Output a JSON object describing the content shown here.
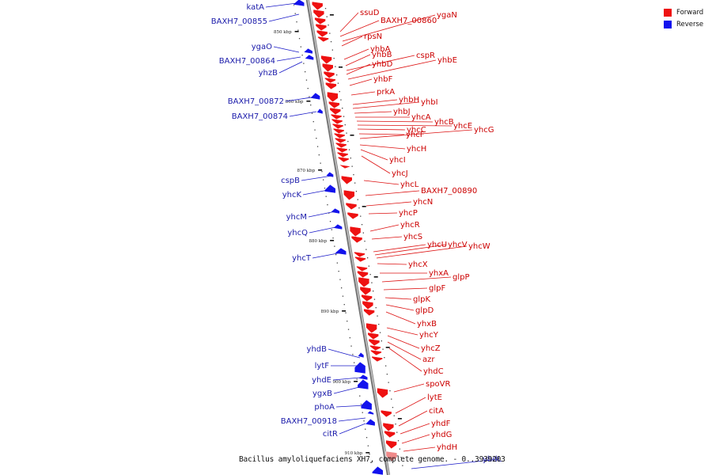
{
  "caption": "Bacillus amyloliquefaciens XH7, complete genome. - 0..3939203",
  "colors": {
    "forward": "#ee1111",
    "reverse": "#1212ee",
    "backbone": "#888888"
  },
  "legend": [
    {
      "label": "Forward",
      "color": "#ee1111"
    },
    {
      "label": "Reverse",
      "color": "#1212ee"
    }
  ],
  "ticks": [
    "850 kbp",
    "860 kbp",
    "870 kbp",
    "880 kbp",
    "890 kbp",
    "900 kbp",
    "910 kbp"
  ],
  "forward_genes": [
    "ssuD",
    "BAXH7_00860",
    "ygaN",
    "rpsN",
    "yhbA",
    "yhbB",
    "cspR",
    "yhbD",
    "yhbE",
    "yhbF",
    "prkA",
    "yhbH",
    "yhbI",
    "yhbJ",
    "yhcA",
    "yhcB",
    "yhcE",
    "yhcC",
    "yhcF",
    "yhcG",
    "yhcH",
    "yhcI",
    "yhcJ",
    "yhcL",
    "BAXH7_00890",
    "yhcN",
    "yhcP",
    "yhcR",
    "yhcS",
    "yhcU",
    "yhcV",
    "yhcW",
    "yhcX",
    "yhxA",
    "glpP",
    "glpF",
    "glpK",
    "glpD",
    "yhxB",
    "yhcY",
    "yhcZ",
    "azr",
    "yhdC",
    "spoVR",
    "lytE",
    "citA",
    "yhdF",
    "yhdG",
    "yhdH"
  ],
  "reverse_genes": [
    "katA",
    "BAXH7_00855",
    "ygaO",
    "BAXH7_00864",
    "yhzB",
    "BAXH7_00872",
    "BAXH7_00874",
    "cspB",
    "yhcK",
    "yhcM",
    "yhcQ",
    "yhcT",
    "yhdB",
    "lytF",
    "yhdE",
    "ygxB",
    "phoA",
    "BAXH7_00918",
    "citR",
    "yhdL"
  ]
}
